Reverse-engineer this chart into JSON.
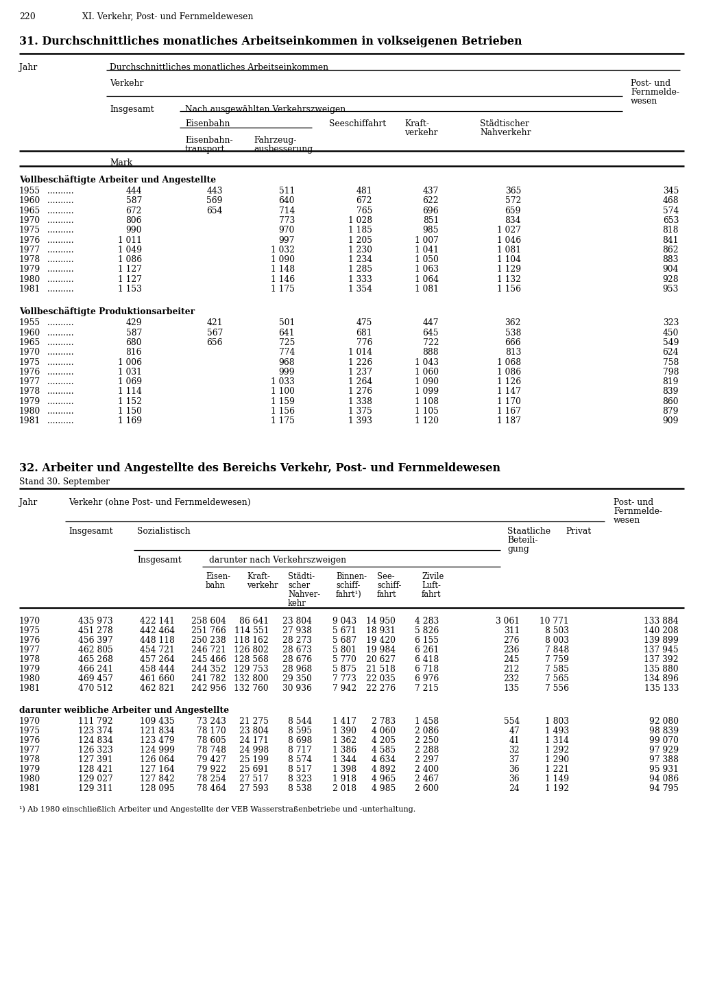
{
  "page_num": "220",
  "chapter": "XI. Verkehr, Post- und Fernmeldewesen",
  "table31_title": "31. Durchschnittliches monatliches Arbeitseinkommen in volkseigenen Betrieben",
  "table32_title": "32. Arbeiter und Angestellte des Bereichs Verkehr, Post- und Fernmeldewesen",
  "table32_subtitle": "Stand 30. September",
  "t31_section1_title": "Vollbeschäftigte Arbeiter und Angestellte",
  "t31_section1": [
    [
      "1955",
      "444",
      "443",
      "511",
      "481",
      "437",
      "365",
      "345"
    ],
    [
      "1960",
      "587",
      "569",
      "640",
      "672",
      "622",
      "572",
      "468"
    ],
    [
      "1965",
      "672",
      "654",
      "714",
      "765",
      "696",
      "659",
      "574"
    ],
    [
      "1970",
      "806",
      "",
      "773",
      "1 028",
      "851",
      "834",
      "653"
    ],
    [
      "1975",
      "990",
      "",
      "970",
      "1 185",
      "985",
      "1 027",
      "818"
    ],
    [
      "1976",
      "1 011",
      "",
      "997",
      "1 205",
      "1 007",
      "1 046",
      "841"
    ],
    [
      "1977",
      "1 049",
      "",
      "1 032",
      "1 230",
      "1 041",
      "1 081",
      "862"
    ],
    [
      "1978",
      "1 086",
      "",
      "1 090",
      "1 234",
      "1 050",
      "1 104",
      "883"
    ],
    [
      "1979",
      "1 127",
      "",
      "1 148",
      "1 285",
      "1 063",
      "1 129",
      "904"
    ],
    [
      "1980",
      "1 127",
      "",
      "1 146",
      "1 333",
      "1 064",
      "1 132",
      "928"
    ],
    [
      "1981",
      "1 153",
      "",
      "1 175",
      "1 354",
      "1 081",
      "1 156",
      "953"
    ]
  ],
  "t31_section2_title": "Vollbeschäftigte Produktionsarbeiter",
  "t31_section2": [
    [
      "1955",
      "429",
      "421",
      "501",
      "475",
      "447",
      "362",
      "323"
    ],
    [
      "1960",
      "587",
      "567",
      "641",
      "681",
      "645",
      "538",
      "450"
    ],
    [
      "1965",
      "680",
      "656",
      "725",
      "776",
      "722",
      "666",
      "549"
    ],
    [
      "1970",
      "816",
      "",
      "774",
      "1 014",
      "888",
      "813",
      "624"
    ],
    [
      "1975",
      "1 006",
      "",
      "968",
      "1 226",
      "1 043",
      "1 068",
      "758"
    ],
    [
      "1976",
      "1 031",
      "",
      "999",
      "1 237",
      "1 060",
      "1 086",
      "798"
    ],
    [
      "1977",
      "1 069",
      "",
      "1 033",
      "1 264",
      "1 090",
      "1 126",
      "819"
    ],
    [
      "1978",
      "1 114",
      "",
      "1 100",
      "1 276",
      "1 099",
      "1 147",
      "839"
    ],
    [
      "1979",
      "1 152",
      "",
      "1 159",
      "1 338",
      "1 108",
      "1 170",
      "860"
    ],
    [
      "1980",
      "1 150",
      "",
      "1 156",
      "1 375",
      "1 105",
      "1 167",
      "879"
    ],
    [
      "1981",
      "1 169",
      "",
      "1 175",
      "1 393",
      "1 120",
      "1 187",
      "909"
    ]
  ],
  "t32_data": [
    [
      "1970",
      "435 973",
      "422 141",
      "258 604",
      "86 641",
      "23 804",
      "9 043",
      "14 950",
      "4 283",
      "3 061",
      "10 771",
      "133 884"
    ],
    [
      "1975",
      "451 278",
      "442 464",
      "251 766",
      "114 551",
      "27 938",
      "5 671",
      "18 931",
      "5 826",
      "311",
      "8 503",
      "140 208"
    ],
    [
      "1976",
      "456 397",
      "448 118",
      "250 238",
      "118 162",
      "28 273",
      "5 687",
      "19 420",
      "6 155",
      "276",
      "8 003",
      "139 899"
    ],
    [
      "1977",
      "462 805",
      "454 721",
      "246 721",
      "126 802",
      "28 673",
      "5 801",
      "19 984",
      "6 261",
      "236",
      "7 848",
      "137 945"
    ],
    [
      "1978",
      "465 268",
      "457 264",
      "245 466",
      "128 568",
      "28 676",
      "5 770",
      "20 627",
      "6 418",
      "245",
      "7 759",
      "137 392"
    ],
    [
      "1979",
      "466 241",
      "458 444",
      "244 352",
      "129 753",
      "28 968",
      "5 875",
      "21 518",
      "6 718",
      "212",
      "7 585",
      "135 880"
    ],
    [
      "1980",
      "469 457",
      "461 660",
      "241 782",
      "132 800",
      "29 350",
      "7 773",
      "22 035",
      "6 976",
      "232",
      "7 565",
      "134 896"
    ],
    [
      "1981",
      "470 512",
      "462 821",
      "242 956",
      "132 760",
      "30 936",
      "7 942",
      "22 276",
      "7 215",
      "135",
      "7 556",
      "135 133"
    ]
  ],
  "t32_section2_title": "darunter weibliche Arbeiter und Angestellte",
  "t32_data2": [
    [
      "1970",
      "111 792",
      "109 435",
      "73 243",
      "21 275",
      "8 544",
      "1 417",
      "2 783",
      "1 458",
      "554",
      "1 803",
      "92 080"
    ],
    [
      "1975",
      "123 374",
      "121 834",
      "78 170",
      "23 804",
      "8 595",
      "1 390",
      "4 060",
      "2 086",
      "47",
      "1 493",
      "98 839"
    ],
    [
      "1976",
      "124 834",
      "123 479",
      "78 605",
      "24 171",
      "8 698",
      "1 362",
      "4 205",
      "2 250",
      "41",
      "1 314",
      "99 070"
    ],
    [
      "1977",
      "126 323",
      "124 999",
      "78 748",
      "24 998",
      "8 717",
      "1 386",
      "4 585",
      "2 288",
      "32",
      "1 292",
      "97 929"
    ],
    [
      "1978",
      "127 391",
      "126 064",
      "79 427",
      "25 199",
      "8 574",
      "1 344",
      "4 634",
      "2 297",
      "37",
      "1 290",
      "97 388"
    ],
    [
      "1979",
      "128 421",
      "127 164",
      "79 922",
      "25 691",
      "8 517",
      "1 398",
      "4 892",
      "2 400",
      "36",
      "1 221",
      "95 931"
    ],
    [
      "1980",
      "129 027",
      "127 842",
      "78 254",
      "27 517",
      "8 323",
      "1 918",
      "4 965",
      "2 467",
      "36",
      "1 149",
      "94 086"
    ],
    [
      "1981",
      "129 311",
      "128 095",
      "78 464",
      "27 593",
      "8 538",
      "2 018",
      "4 985",
      "2 600",
      "24",
      "1 192",
      "94 795"
    ]
  ],
  "footnote": "¹) Ab 1980 einschließlich Arbeiter und Angestellte der VEB Wasserstraßenbetriebe und -unterhaltung."
}
